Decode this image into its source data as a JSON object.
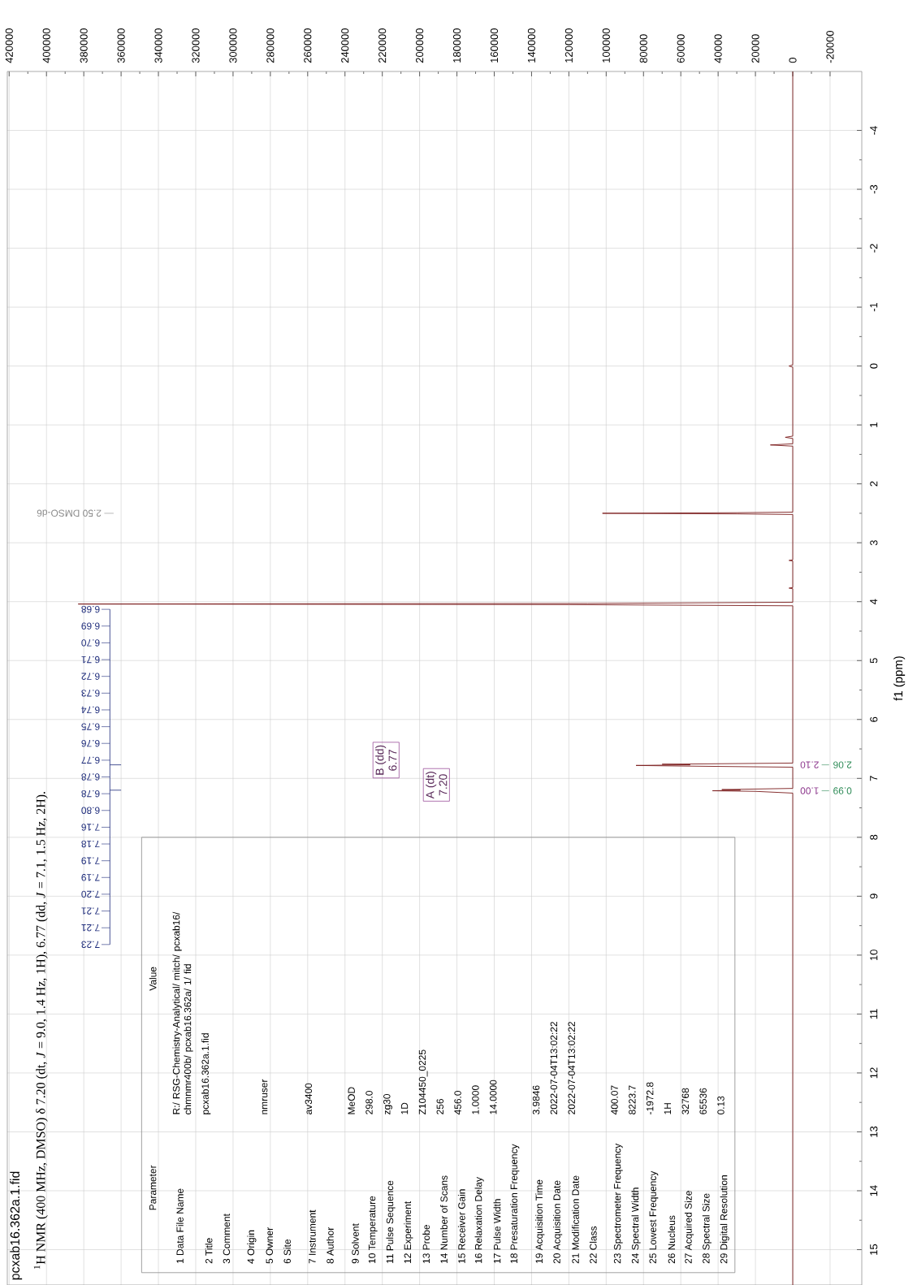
{
  "chart_data": {
    "type": "line",
    "orientation": "horizontal",
    "title": "pcxab16.362a.1.fid",
    "subtitle": "$^{1}$H NMR (400 MHz, DMSO) δ 7.20 (dt, *J* = 9.0, 1.4 Hz, 1H), 6.77 (dd, *J* = 7.1, 1.5 Hz, 2H).",
    "ylabel": "f1 (ppm)",
    "x": [
      15.6,
      7.25,
      7.22,
      7.21,
      7.2,
      7.19,
      7.17,
      6.81,
      6.79,
      6.78,
      6.77,
      6.76,
      6.74,
      4.07,
      4.05,
      4.04,
      4.03,
      4.01,
      3.78,
      3.77,
      3.76,
      3.31,
      3.3,
      3.29,
      2.52,
      2.51,
      2.5,
      2.49,
      2.48,
      1.36,
      1.34,
      1.32,
      1.23,
      1.21,
      1.19,
      0.02,
      0.0,
      -0.02,
      -5.0
    ],
    "values": [
      0,
      0,
      20000,
      43000,
      28000,
      38000,
      0,
      0,
      60000,
      84000,
      55000,
      70000,
      0,
      0,
      120000,
      383000,
      110000,
      0,
      0,
      2000,
      0,
      0,
      2000,
      0,
      0,
      30000,
      102000,
      30000,
      0,
      0,
      12000,
      0,
      0,
      4000,
      0,
      0,
      2000,
      0,
      0
    ],
    "color": "#7b1c1c",
    "xlim": [
      421000,
      -37000
    ],
    "ylim": [
      15.6,
      -5.0
    ],
    "yticks": [
      -4,
      -3,
      -2,
      -1,
      0,
      1,
      2,
      3,
      4,
      5,
      6,
      7,
      8,
      9,
      10,
      11,
      12,
      13,
      14,
      15
    ],
    "xticks": [
      -20000,
      0,
      20000,
      40000,
      60000,
      80000,
      100000,
      120000,
      140000,
      160000,
      180000,
      200000,
      220000,
      240000,
      260000,
      280000,
      300000,
      320000,
      340000,
      360000,
      380000,
      400000,
      420000
    ],
    "grid": true,
    "annotations": [
      "2.50 DMSO-d6",
      "B (dd)",
      "6.77",
      "A (dt)",
      "7.20",
      "1.00",
      "2.10",
      "0.99",
      "2.06",
      "7.23",
      "7.21",
      "7.21",
      "7.20",
      "7.19",
      "7.19",
      "7.18",
      "7.16",
      "6.80",
      "6.78",
      "6.78",
      "6.77",
      "6.76",
      "6.75",
      "6.74",
      "6.73",
      "6.72",
      "6.71",
      "6.70",
      "6.69",
      "6.68",
      "Parameter",
      "Value",
      "1 Data File Name",
      "2 Title",
      "3 Comment",
      "4 Origin",
      "5 Owner",
      "6 Site",
      "7 Instrument",
      "8 Author",
      "9 Solvent",
      "10 Temperature",
      "11 Pulse Sequence",
      "12 Experiment",
      "13 Probe",
      "14 Number of Scans",
      "15 Receiver Gain",
      "16 Relaxation Delay",
      "17 Pulse Width",
      "18 Presaturation Frequency",
      "19 Acquisition Time",
      "20 Acquisition Date",
      "21 Modification Date",
      "22 Class",
      "23 Spectrometer Frequency",
      "24 Spectral Width",
      "25 Lowest Frequency",
      "26 Nucleus",
      "27 Acquired Size",
      "28 Spectral Size",
      "29 Digital Resolution",
      "R:/ RSG-Chemistry-Analytical/ mitch/ pcxab16/ chmnmr400b/ pcxab16.362a/ 1/ fid",
      "pcxab16.362a.1.fid",
      "nmruser",
      "av3400",
      "MeOD",
      "298.0",
      "zg30",
      "1D",
      "Z104450_0225",
      "256",
      "456.0",
      "1.0000",
      "14.0000",
      "3.9846",
      "2022-07-04T13:02:22",
      "2022-07-04T13:02:22",
      "400.07",
      "8223.7",
      "-1972.8",
      "1H",
      "32768",
      "65536",
      "0.13"
    ]
  }
}
